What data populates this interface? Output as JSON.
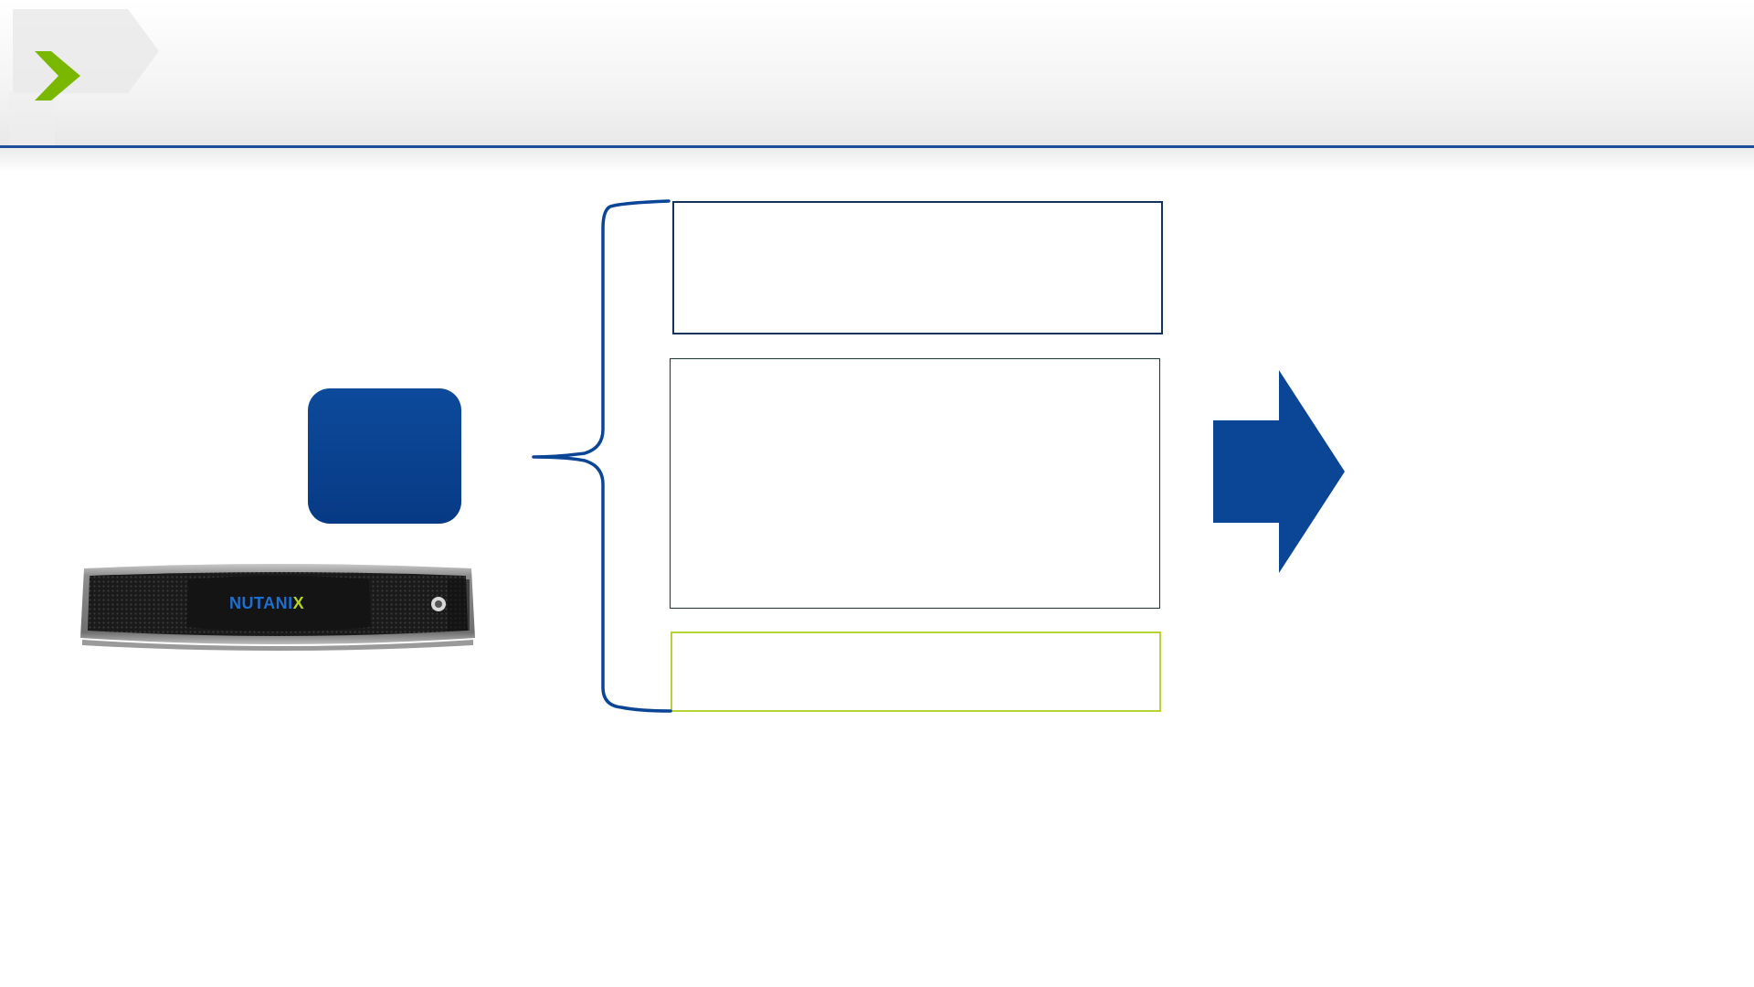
{
  "header": {
    "title": "",
    "accent_color": "#7ab800",
    "rule_color": "#1f4e9a"
  },
  "node": {
    "label": "",
    "color": "#0b4595"
  },
  "appliance": {
    "brand_text_main": "NUTANI",
    "brand_text_accent": "X",
    "brand_color": "#1e6fd0",
    "accent_color": "#b7d31e"
  },
  "panels": {
    "top": {
      "text": "",
      "border_color": "#14335c"
    },
    "middle": {
      "text": "",
      "border_color": "#1d3a2c"
    },
    "bottom": {
      "text": "",
      "border_color": "#b6d33a"
    }
  },
  "connector": {
    "type": "curly-brace",
    "color": "#0b4595"
  },
  "arrow": {
    "direction": "right",
    "color": "#0b4595"
  },
  "result": {
    "text": ""
  }
}
